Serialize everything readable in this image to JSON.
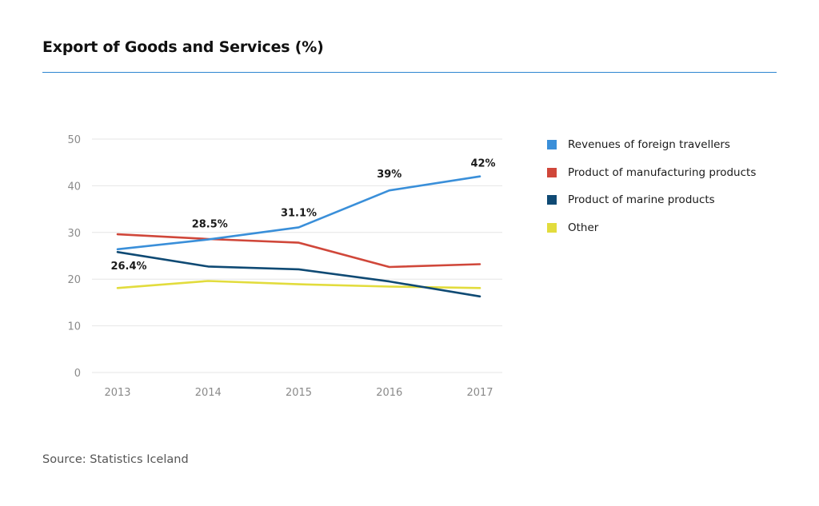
{
  "title": "Export of Goods and Services (%)",
  "source": "Source: Statistics Iceland",
  "colors": {
    "title_rule": "#2e86d1",
    "gridline": "#e6e6e6",
    "tick_text": "#8a8a8a"
  },
  "chart_data": {
    "type": "line",
    "title": "Export of Goods and Services (%)",
    "xlabel": "",
    "ylabel": "",
    "categories": [
      "2013",
      "2014",
      "2015",
      "2016",
      "2017"
    ],
    "ylim": [
      0,
      50
    ],
    "yticks": [
      0,
      10,
      20,
      30,
      40,
      50
    ],
    "grid": true,
    "legend_position": "right",
    "series": [
      {
        "name": "Revenues of foreign travellers",
        "color": "#3a8fd9",
        "values": [
          26.4,
          28.5,
          31.1,
          39,
          42
        ],
        "labels": [
          "26.4%",
          "28.5%",
          "31.1%",
          "39%",
          "42%"
        ]
      },
      {
        "name": "Product of manufacturing products",
        "color": "#d0473a",
        "values": [
          29.6,
          28.6,
          27.8,
          22.6,
          23.2
        ]
      },
      {
        "name": "Product of marine products",
        "color": "#0f4a74",
        "values": [
          25.8,
          22.7,
          22.1,
          19.5,
          16.3
        ]
      },
      {
        "name": "Other",
        "color": "#e2dc3d",
        "values": [
          18.1,
          19.6,
          18.9,
          18.4,
          18.1
        ]
      }
    ]
  }
}
